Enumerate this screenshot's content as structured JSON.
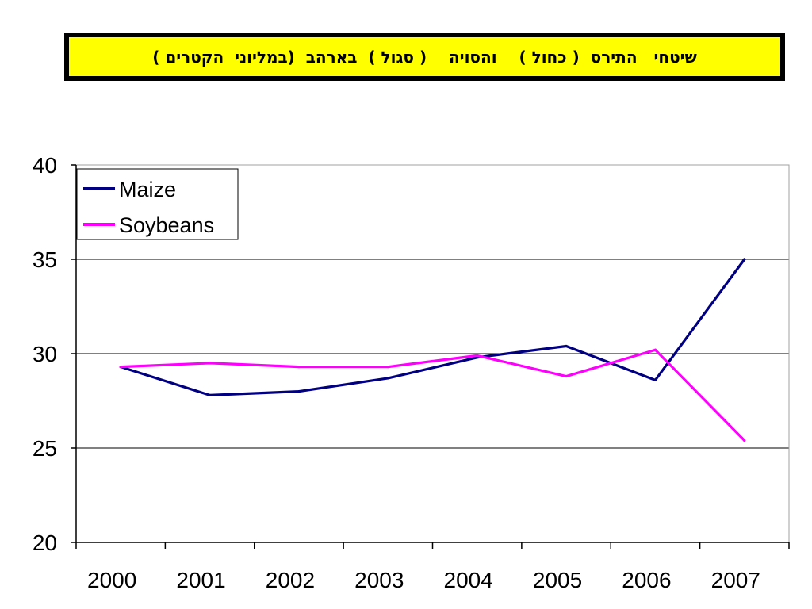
{
  "header": {
    "title": "שיטחי   התירס  ( כחול )    והסויה    ( סגול )  בארהב  (במליוני  הקטרים )"
  },
  "chart_data": {
    "type": "line",
    "categories": [
      "2000",
      "2001",
      "2002",
      "2003",
      "2004",
      "2005",
      "2006",
      "2007"
    ],
    "series": [
      {
        "name": "Maize",
        "color": "#000080",
        "values": [
          29.3,
          27.8,
          28.0,
          28.7,
          29.8,
          30.4,
          28.6,
          35.0
        ]
      },
      {
        "name": "Soybeans",
        "color": "#ff00ff",
        "values": [
          29.3,
          29.5,
          29.3,
          29.3,
          29.9,
          28.8,
          30.2,
          25.4
        ]
      }
    ],
    "ylim": [
      20,
      40
    ],
    "yticks": [
      20,
      25,
      30,
      35,
      40
    ],
    "grid": true,
    "legend_position": "top-left"
  }
}
